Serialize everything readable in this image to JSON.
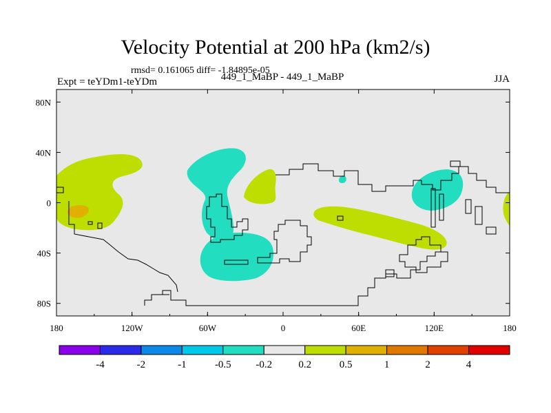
{
  "chart_data": {
    "type": "heatmap",
    "title": "Velocity Potential at 200 hPa (km2/s)",
    "stats_line": "rmsd= 0.161065 diff= -1.84895e-05",
    "left_label": "Expt = teYDm1-teYDm",
    "center_label": "449_1_MaBP - 449_1_MaBP",
    "right_label": "JJA",
    "x_ticks": [
      "180",
      "120W",
      "60W",
      "0",
      "60E",
      "120E",
      "180"
    ],
    "y_ticks": [
      "80N",
      "40N",
      "0",
      "40S",
      "80S"
    ],
    "xlim": [
      -180,
      180
    ],
    "ylim": [
      -90,
      90
    ],
    "colorbar": {
      "labels": [
        "-4",
        "-2",
        "-1",
        "-0.5",
        "-0.2",
        "0.2",
        "0.5",
        "1",
        "2",
        "4"
      ],
      "colors": [
        "#8a00e8",
        "#2a2ae8",
        "#0c88e8",
        "#00c8e8",
        "#22ddc0",
        "#e8e8e8",
        "#bedd00",
        "#e0b000",
        "#e07800",
        "#e04000",
        "#e00000"
      ]
    },
    "colors": {
      "background_field": "#e8e8e8",
      "negative_contour": "#22ddc0",
      "positive_contour": "#bedd00",
      "strong_positive": "#e0b000",
      "coast": "#000000"
    },
    "regions": [
      {
        "label": "positive",
        "center": [
          -158,
          20
        ]
      },
      {
        "label": "strong_positive",
        "center": [
          -164,
          -7
        ]
      },
      {
        "label": "negative",
        "center": [
          -47,
          23
        ]
      },
      {
        "label": "negative",
        "center": [
          -30,
          -46
        ]
      },
      {
        "label": "positive",
        "center": [
          -22,
          20
        ]
      },
      {
        "label": "negative",
        "center": [
          48,
          19
        ]
      },
      {
        "label": "positive",
        "center": [
          85,
          -13
        ]
      },
      {
        "label": "negative",
        "center": [
          123,
          9
        ]
      },
      {
        "label": "positive",
        "center": [
          178,
          -4
        ]
      }
    ]
  }
}
